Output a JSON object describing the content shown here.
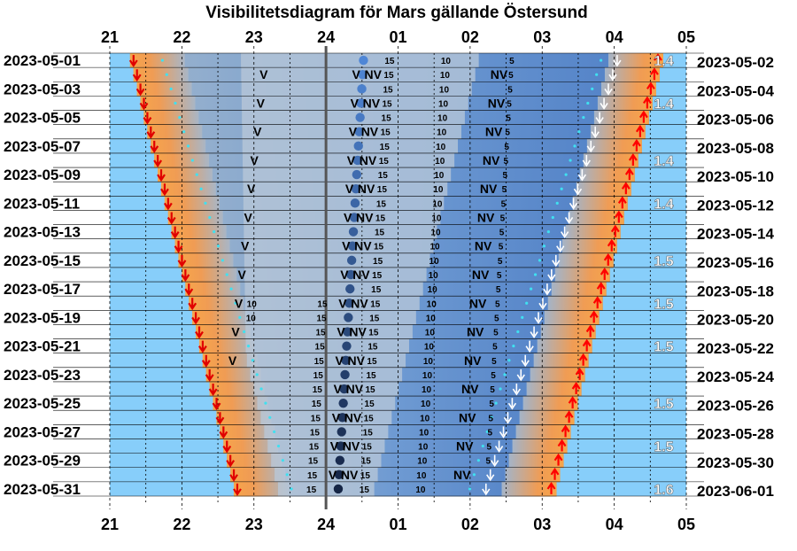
{
  "title": "Visibilitetsdiagram för Mars gällande Östersund",
  "colors": {
    "sky_day": "#87CEFA",
    "twilight": "#F7A54A",
    "night_light": "#A9C4E2",
    "night_dark": "#5E8FCF",
    "mars_region": "#B9C8D8",
    "set_arrow": "#E00000",
    "rise_arrow": "#FF0000",
    "dawn_arrow": "#FFFFFF",
    "mars_dot_early": "#4F86D6",
    "mars_dot_late": "#0F1F3A",
    "dot_cyan": "#40E0F0"
  },
  "icons": {
    "set_marker": "red-down-arrow-icon",
    "rise_marker": "red-up-arrow-icon",
    "dawn_marker": "white-down-arrow-icon",
    "mars_marker": "mars-dot-icon"
  },
  "chart_data": {
    "type": "heatmap",
    "x_axis": {
      "range_hours": [
        21,
        29
      ],
      "tick_labels": [
        "21",
        "22",
        "23",
        "24",
        "01",
        "02",
        "03",
        "04",
        "05"
      ],
      "midnight_label": "24"
    },
    "left_dates": [
      "2023-05-01",
      "2023-05-03",
      "2023-05-05",
      "2023-05-07",
      "2023-05-09",
      "2023-05-11",
      "2023-05-13",
      "2023-05-15",
      "2023-05-17",
      "2023-05-19",
      "2023-05-21",
      "2023-05-23",
      "2023-05-25",
      "2023-05-27",
      "2023-05-29",
      "2023-05-31"
    ],
    "right_dates": [
      "2023-05-02",
      "2023-05-04",
      "2023-05-06",
      "2023-05-08",
      "2023-05-10",
      "2023-05-12",
      "2023-05-14",
      "2023-05-16",
      "2023-05-18",
      "2023-05-20",
      "2023-05-22",
      "2023-05-24",
      "2023-05-26",
      "2023-05-28",
      "2023-05-30",
      "2023-06-01"
    ],
    "rows_per_label": 2,
    "row_count": 31,
    "sunset_hour": {
      "first": 21.28,
      "last": 22.72
    },
    "sunrise_hour": {
      "first": 4.68,
      "last": 3.2
    },
    "dawn_hour": {
      "first": 4.04,
      "last": 2.22
    },
    "mars_transit_hour": {
      "first": 0.52,
      "last": 0.17
    },
    "altitude_labels": [
      "15",
      "10",
      "5"
    ],
    "altitude_offsets_hours": {
      "15": 0.22,
      "10": 1.0,
      "5": 1.95
    },
    "marker_V": "V",
    "marker_NV": "NV",
    "magnitudes": [
      "1.4",
      "1.4",
      "1.4",
      "1.4",
      "1.5",
      "1.5",
      "1.5",
      "1.5",
      "1.5",
      "1.6"
    ],
    "magnitude_rows": [
      1,
      4,
      8,
      11,
      15,
      18,
      21,
      25,
      28,
      31
    ]
  }
}
